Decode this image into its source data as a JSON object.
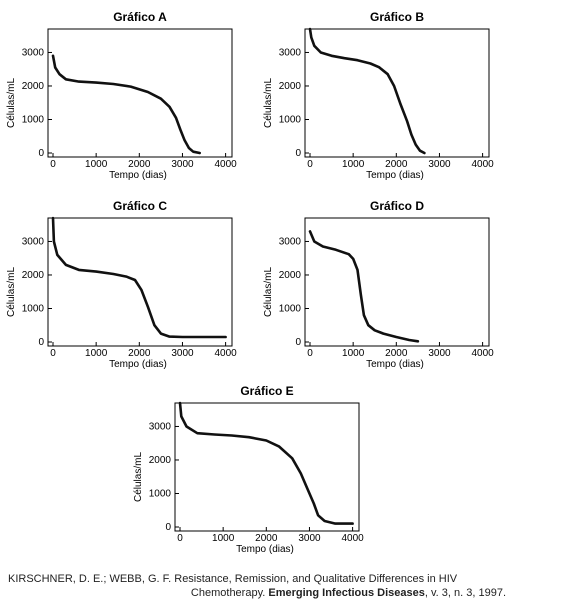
{
  "chart_data": [
    {
      "type": "line",
      "title": "Gráfico A",
      "xlabel": "Tempo (dias)",
      "ylabel": "Células/mL",
      "xlim": [
        0,
        4000
      ],
      "ylim": [
        0,
        3700
      ],
      "xticks": [
        0,
        1000,
        2000,
        3000,
        4000
      ],
      "yticks": [
        0,
        1000,
        2000,
        3000
      ],
      "series": [
        {
          "values": [
            [
              0,
              2900
            ],
            [
              50,
              2550
            ],
            [
              150,
              2350
            ],
            [
              300,
              2200
            ],
            [
              600,
              2130
            ],
            [
              1000,
              2100
            ],
            [
              1400,
              2060
            ],
            [
              1800,
              1980
            ],
            [
              2200,
              1820
            ],
            [
              2500,
              1620
            ],
            [
              2700,
              1380
            ],
            [
              2850,
              1050
            ],
            [
              2950,
              700
            ],
            [
              3050,
              380
            ],
            [
              3150,
              150
            ],
            [
              3250,
              40
            ],
            [
              3400,
              0
            ]
          ]
        }
      ]
    },
    {
      "type": "line",
      "title": "Gráfico B",
      "xlabel": "Tempo (dias)",
      "ylabel": "Células/mL",
      "xlim": [
        0,
        4000
      ],
      "ylim": [
        0,
        3700
      ],
      "xticks": [
        0,
        1000,
        2000,
        3000,
        4000
      ],
      "yticks": [
        0,
        1000,
        2000,
        3000
      ],
      "series": [
        {
          "values": [
            [
              0,
              3700
            ],
            [
              30,
              3450
            ],
            [
              100,
              3200
            ],
            [
              250,
              3000
            ],
            [
              500,
              2900
            ],
            [
              800,
              2830
            ],
            [
              1100,
              2770
            ],
            [
              1400,
              2670
            ],
            [
              1600,
              2560
            ],
            [
              1800,
              2350
            ],
            [
              1950,
              2000
            ],
            [
              2100,
              1450
            ],
            [
              2250,
              950
            ],
            [
              2350,
              550
            ],
            [
              2450,
              250
            ],
            [
              2550,
              70
            ],
            [
              2650,
              0
            ]
          ]
        }
      ]
    },
    {
      "type": "line",
      "title": "Gráfico C",
      "xlabel": "Tempo (dias)",
      "ylabel": "Células/mL",
      "xlim": [
        0,
        4000
      ],
      "ylim": [
        0,
        3700
      ],
      "xticks": [
        0,
        1000,
        2000,
        3000,
        4000
      ],
      "yticks": [
        0,
        1000,
        2000,
        3000
      ],
      "series": [
        {
          "values": [
            [
              0,
              3700
            ],
            [
              20,
              3000
            ],
            [
              100,
              2600
            ],
            [
              300,
              2300
            ],
            [
              600,
              2150
            ],
            [
              1000,
              2100
            ],
            [
              1400,
              2030
            ],
            [
              1700,
              1950
            ],
            [
              1900,
              1850
            ],
            [
              2050,
              1550
            ],
            [
              2200,
              1050
            ],
            [
              2350,
              500
            ],
            [
              2500,
              250
            ],
            [
              2700,
              160
            ],
            [
              3000,
              150
            ],
            [
              4000,
              150
            ]
          ]
        }
      ]
    },
    {
      "type": "line",
      "title": "Gráfico D",
      "xlabel": "Tempo (dias)",
      "ylabel": "Células/mL",
      "xlim": [
        0,
        4000
      ],
      "ylim": [
        0,
        3700
      ],
      "xticks": [
        0,
        1000,
        2000,
        3000,
        4000
      ],
      "yticks": [
        0,
        1000,
        2000,
        3000
      ],
      "series": [
        {
          "values": [
            [
              0,
              3300
            ],
            [
              100,
              3000
            ],
            [
              300,
              2850
            ],
            [
              600,
              2750
            ],
            [
              900,
              2620
            ],
            [
              1000,
              2480
            ],
            [
              1100,
              2150
            ],
            [
              1180,
              1400
            ],
            [
              1250,
              800
            ],
            [
              1350,
              500
            ],
            [
              1500,
              350
            ],
            [
              1700,
              250
            ],
            [
              2000,
              150
            ],
            [
              2300,
              60
            ],
            [
              2500,
              20
            ]
          ]
        }
      ]
    },
    {
      "type": "line",
      "title": "Gráfico E",
      "xlabel": "Tempo (dias)",
      "ylabel": "Células/mL",
      "xlim": [
        0,
        4000
      ],
      "ylim": [
        0,
        3700
      ],
      "xticks": [
        0,
        1000,
        2000,
        3000,
        4000
      ],
      "yticks": [
        0,
        1000,
        2000,
        3000
      ],
      "series": [
        {
          "values": [
            [
              0,
              3700
            ],
            [
              30,
              3300
            ],
            [
              150,
              3000
            ],
            [
              400,
              2800
            ],
            [
              800,
              2760
            ],
            [
              1200,
              2730
            ],
            [
              1600,
              2680
            ],
            [
              2000,
              2580
            ],
            [
              2300,
              2400
            ],
            [
              2600,
              2050
            ],
            [
              2800,
              1600
            ],
            [
              2950,
              1150
            ],
            [
              3100,
              700
            ],
            [
              3200,
              350
            ],
            [
              3350,
              180
            ],
            [
              3600,
              100
            ],
            [
              4000,
              100
            ]
          ]
        }
      ]
    }
  ],
  "caption": {
    "line1": "KIRSCHNER, D. E.; WEBB, G. F. Resistance, Remission, and Qualitative Differences in HIV",
    "line2_prefix": "Chemotherapy. ",
    "line2_journal": "Emerging Infectious Diseases",
    "line2_suffix": ", v. 3, n. 3, 1997."
  }
}
